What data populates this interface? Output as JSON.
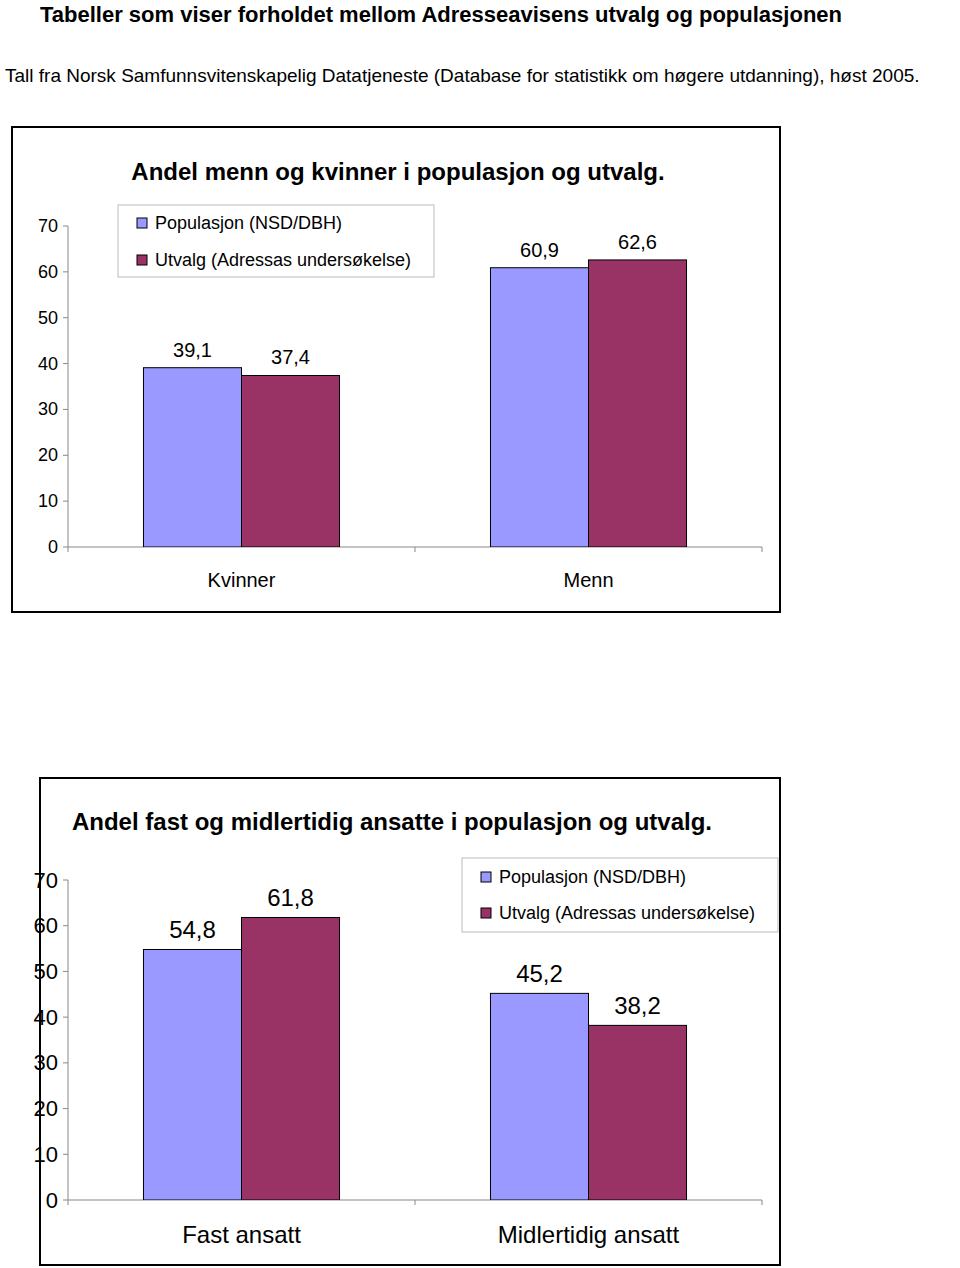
{
  "header": {
    "title": "Tabeller som viser forholdet mellom Adresseavisens utvalg og populasjonen",
    "subtitle": "Tall fra Norsk Samfunnsvitenskapelig Datatjeneste (Database for statistikk om høgere utdanning), høst 2005."
  },
  "chart_data": [
    {
      "type": "bar",
      "title": "Andel menn og kvinner i populasjon og utvalg.",
      "categories": [
        "Kvinner",
        "Menn"
      ],
      "series": [
        {
          "name": "Populasjon (NSD/DBH)",
          "color": "#9999ff",
          "values": [
            39.1,
            60.9
          ],
          "value_labels": [
            "39,1",
            "60,9"
          ]
        },
        {
          "name": "Utvalg (Adressas undersøkelse)",
          "color": "#993366",
          "values": [
            37.4,
            62.6
          ],
          "value_labels": [
            "37,4",
            "62,6"
          ]
        }
      ],
      "ylim": [
        0,
        70
      ],
      "yticks": [
        0,
        10,
        20,
        30,
        40,
        50,
        60,
        70
      ],
      "grid": false,
      "legend": "upper left",
      "data_labels": true
    },
    {
      "type": "bar",
      "title": "Andel fast og midlertidig ansatte i populasjon og utvalg.",
      "categories": [
        "Fast ansatt",
        "Midlertidig ansatt"
      ],
      "series": [
        {
          "name": "Populasjon (NSD/DBH)",
          "color": "#9999ff",
          "values": [
            54.8,
            45.2
          ],
          "value_labels": [
            "54,8",
            "45,2"
          ]
        },
        {
          "name": "Utvalg (Adressas undersøkelse)",
          "color": "#993366",
          "values": [
            61.8,
            38.2
          ],
          "value_labels": [
            "61,8",
            "38,2"
          ]
        }
      ],
      "ylim": [
        0,
        70
      ],
      "yticks": [
        0,
        10,
        20,
        30,
        40,
        50,
        60,
        70
      ],
      "grid": false,
      "legend": "upper right",
      "data_labels": true
    }
  ]
}
